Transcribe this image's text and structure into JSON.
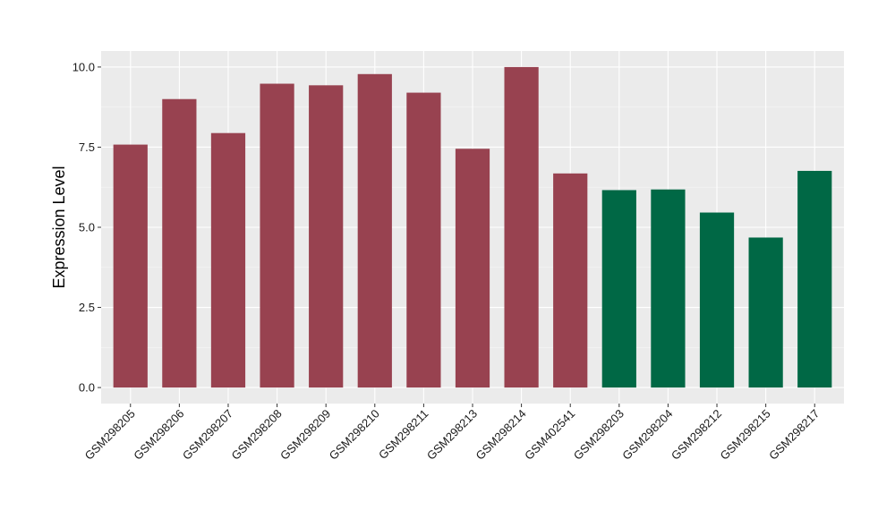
{
  "chart_data": {
    "type": "bar",
    "title": "",
    "xlabel": "",
    "ylabel": "Expression Level",
    "ylim": [
      -0.5,
      10.5
    ],
    "yticks": [
      0.0,
      2.5,
      5.0,
      7.5,
      10.0
    ],
    "ytick_labels": [
      "0.0",
      "2.5",
      "5.0",
      "7.5",
      "10.0"
    ],
    "grid": true,
    "categories": [
      "GSM298205",
      "GSM298206",
      "GSM298207",
      "GSM298208",
      "GSM298209",
      "GSM298210",
      "GSM298211",
      "GSM298213",
      "GSM298214",
      "GSM402541",
      "GSM298203",
      "GSM298204",
      "GSM298212",
      "GSM298215",
      "GSM298217"
    ],
    "values": [
      7.58,
      9.0,
      7.94,
      9.48,
      9.43,
      9.78,
      9.2,
      7.45,
      10.0,
      6.68,
      6.16,
      6.18,
      5.46,
      4.68,
      6.76
    ],
    "groups": [
      "a",
      "a",
      "a",
      "a",
      "a",
      "a",
      "a",
      "a",
      "a",
      "a",
      "b",
      "b",
      "b",
      "b",
      "b"
    ],
    "colors": {
      "a": "#984250",
      "b": "#006845",
      "panel_bg": "#ebebeb",
      "grid_major": "#ffffff",
      "grid_minor": "#f5f5f5"
    }
  }
}
